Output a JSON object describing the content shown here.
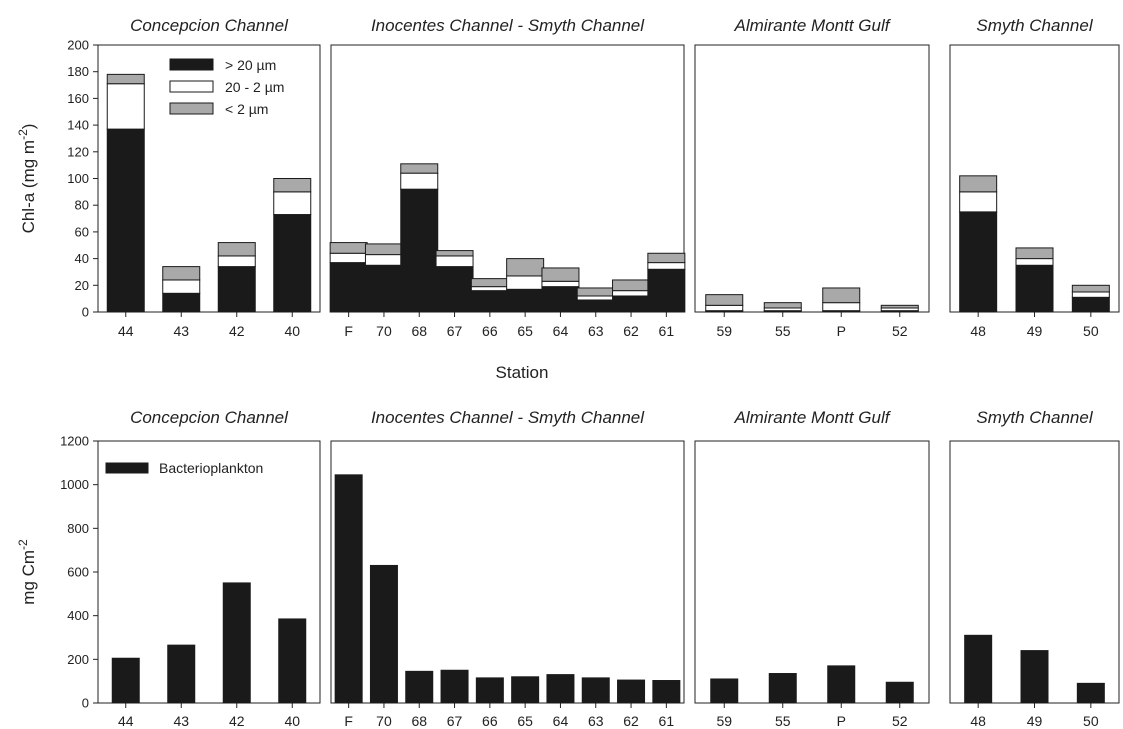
{
  "chart_data": [
    {
      "type": "bar",
      "stacked": true,
      "ylabel": "Chl-a (mg m-2)",
      "xlabel": "Station",
      "ylim": [
        0,
        200
      ],
      "yticks": [
        0,
        20,
        40,
        60,
        80,
        100,
        120,
        140,
        160,
        180,
        200
      ],
      "legend": {
        "position": "top-right of first panel",
        "entries": [
          "> 20 µm",
          "20 - 2 µm",
          "< 2 µm"
        ]
      },
      "series_colors": {
        "> 20 µm": "#1a1a1a",
        "20 - 2 µm": "#ffffff",
        "< 2 µm": "#a9a9a9"
      },
      "panels": [
        {
          "title": "Concepcion Channel",
          "categories": [
            "44",
            "43",
            "42",
            "40"
          ],
          "series": [
            {
              "name": "> 20 µm",
              "values": [
                137,
                14,
                34,
                73
              ]
            },
            {
              "name": "20 - 2 µm",
              "values": [
                34,
                10,
                8,
                17
              ]
            },
            {
              "name": "< 2 µm",
              "values": [
                7,
                10,
                10,
                10
              ]
            }
          ]
        },
        {
          "title": "Inocentes Channel - Smyth Channel",
          "categories": [
            "F",
            "70",
            "68",
            "67",
            "66",
            "65",
            "64",
            "63",
            "62",
            "61"
          ],
          "series": [
            {
              "name": "> 20 µm",
              "values": [
                37,
                35,
                92,
                34,
                16,
                17,
                19,
                9,
                12,
                32
              ]
            },
            {
              "name": "20 - 2 µm",
              "values": [
                7,
                8,
                12,
                8,
                3,
                10,
                4,
                3,
                4,
                5
              ]
            },
            {
              "name": "< 2 µm",
              "values": [
                8,
                8,
                7,
                4,
                6,
                13,
                10,
                6,
                8,
                7
              ]
            }
          ]
        },
        {
          "title": "Almirante Montt Gulf",
          "categories": [
            "59",
            "55",
            "P",
            "52"
          ],
          "series": [
            {
              "name": "> 20 µm",
              "values": [
                1,
                1,
                1,
                1
              ]
            },
            {
              "name": "20 - 2 µm",
              "values": [
                4,
                2,
                6,
                2
              ]
            },
            {
              "name": "< 2 µm",
              "values": [
                8,
                4,
                11,
                2
              ]
            }
          ]
        },
        {
          "title": "Smyth Channel",
          "categories": [
            "48",
            "49",
            "50"
          ],
          "series": [
            {
              "name": "> 20 µm",
              "values": [
                75,
                35,
                11
              ]
            },
            {
              "name": "20 - 2 µm",
              "values": [
                15,
                5,
                4
              ]
            },
            {
              "name": "< 2 µm",
              "values": [
                12,
                8,
                5
              ]
            }
          ]
        }
      ]
    },
    {
      "type": "bar",
      "ylabel": "mg Cm-2",
      "ylim": [
        0,
        1200
      ],
      "yticks": [
        0,
        200,
        400,
        600,
        800,
        1000,
        1200
      ],
      "legend": {
        "position": "top-left of first panel",
        "entries": [
          "Bacterioplankton"
        ]
      },
      "series_colors": {
        "Bacterioplankton": "#1a1a1a"
      },
      "panels": [
        {
          "title": "Concepcion Channel",
          "categories": [
            "44",
            "43",
            "42",
            "40"
          ],
          "series": [
            {
              "name": "Bacterioplankton",
              "values": [
                205,
                265,
                550,
                385
              ]
            }
          ]
        },
        {
          "title": "Inocentes Channel - Smyth Channel",
          "categories": [
            "F",
            "70",
            "68",
            "67",
            "66",
            "65",
            "64",
            "63",
            "62",
            "61"
          ],
          "series": [
            {
              "name": "Bacterioplankton",
              "values": [
                1045,
                630,
                145,
                150,
                115,
                120,
                130,
                115,
                105,
                103
              ]
            }
          ]
        },
        {
          "title": "Almirante Montt Gulf",
          "categories": [
            "59",
            "55",
            "P",
            "52"
          ],
          "series": [
            {
              "name": "Bacterioplankton",
              "values": [
                110,
                135,
                170,
                95
              ]
            }
          ]
        },
        {
          "title": "Smyth Channel",
          "categories": [
            "48",
            "49",
            "50"
          ],
          "series": [
            {
              "name": "Bacterioplankton",
              "values": [
                310,
                240,
                90
              ]
            }
          ]
        }
      ]
    }
  ]
}
